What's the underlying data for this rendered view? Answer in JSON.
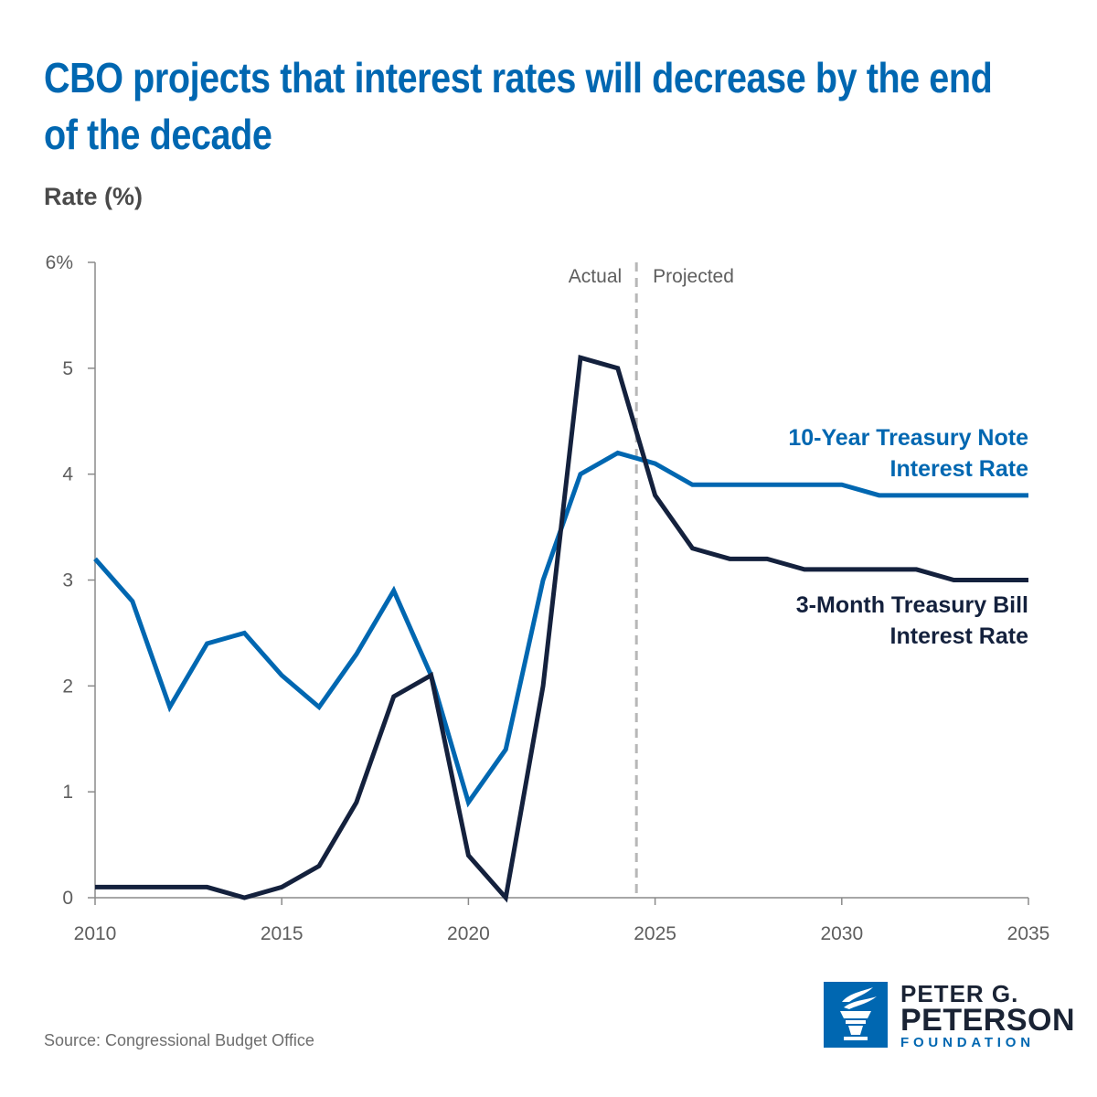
{
  "title": "CBO projects that interest rates will decrease by the end of the decade",
  "y_axis_title": "Rate (%)",
  "source": "Source: Congressional Budget Office",
  "logo": {
    "line1": "PETER G.",
    "line2": "PETERSON",
    "line3": "FOUNDATION"
  },
  "colors": {
    "ten_year": "#0067b1",
    "three_month": "#14213d",
    "divider": "#b8b8b8",
    "axis": "#8a8a8a"
  },
  "chart_data": {
    "type": "line",
    "title": "CBO projects that interest rates will decrease by the end of the decade",
    "ylabel": "Rate (%)",
    "xlabel": "",
    "xlim": [
      2010,
      2035
    ],
    "ylim": [
      0,
      6
    ],
    "x_ticks": [
      "2010",
      "2015",
      "2020",
      "2025",
      "2030",
      "2035"
    ],
    "y_ticks": [
      "0",
      "1",
      "2",
      "3",
      "4",
      "5",
      "6%"
    ],
    "phase_divider": {
      "x": 2024.5,
      "left_label": "Actual",
      "right_label": "Projected"
    },
    "grid": false,
    "x": [
      2010,
      2011,
      2012,
      2013,
      2014,
      2015,
      2016,
      2017,
      2018,
      2019,
      2020,
      2021,
      2022,
      2023,
      2024,
      2025,
      2026,
      2027,
      2028,
      2029,
      2030,
      2031,
      2032,
      2033,
      2034,
      2035
    ],
    "series": [
      {
        "name_lines": [
          "10-Year Treasury Note",
          "Interest Rate"
        ],
        "values": [
          3.2,
          2.8,
          1.8,
          2.4,
          2.5,
          2.1,
          1.8,
          2.3,
          2.9,
          2.1,
          0.9,
          1.4,
          3.0,
          4.0,
          4.2,
          4.1,
          3.9,
          3.9,
          3.9,
          3.9,
          3.9,
          3.8,
          3.8,
          3.8,
          3.8,
          3.8
        ]
      },
      {
        "name_lines": [
          "3-Month Treasury Bill",
          "Interest Rate"
        ],
        "values": [
          0.1,
          0.1,
          0.1,
          0.1,
          0.0,
          0.1,
          0.3,
          0.9,
          1.9,
          2.1,
          0.4,
          0.0,
          2.0,
          5.1,
          5.0,
          3.8,
          3.3,
          3.2,
          3.2,
          3.1,
          3.1,
          3.1,
          3.1,
          3.0,
          3.0,
          3.0
        ]
      }
    ]
  }
}
